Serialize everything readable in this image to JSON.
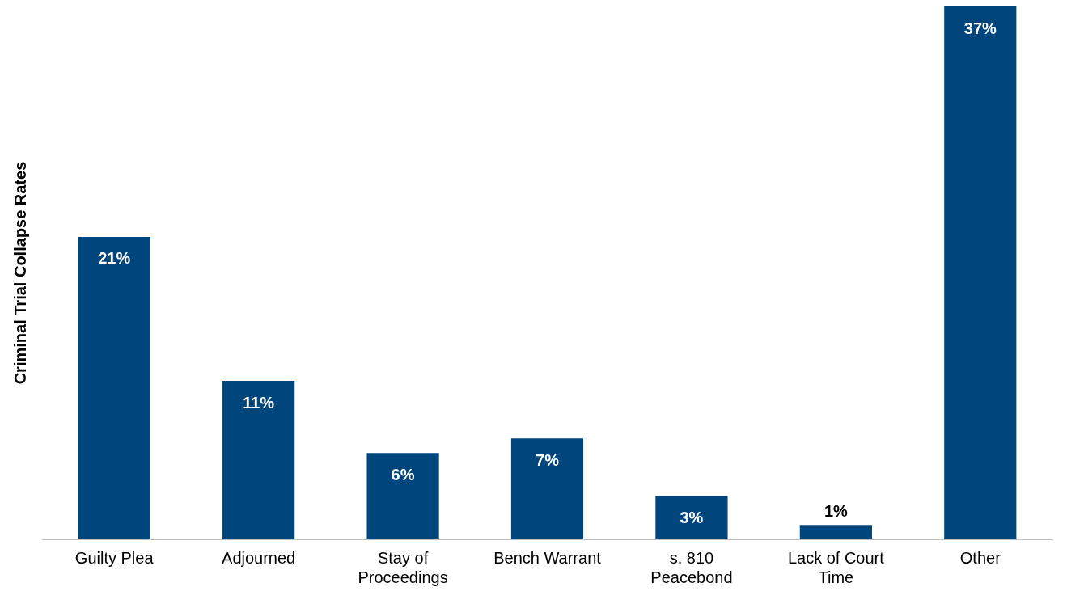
{
  "chart_data": {
    "type": "bar",
    "ylabel": "Criminal Trial Collapse Rates",
    "categories": [
      "Guilty Plea",
      "Adjourned",
      "Stay of Proceedings",
      "Bench Warrant",
      "s. 810 Peacebond",
      "Lack of Court Time",
      "Other"
    ],
    "values": [
      21,
      11,
      6,
      7,
      3,
      1,
      37
    ],
    "value_labels": [
      "21%",
      "11%",
      "6%",
      "7%",
      "3%",
      "1%",
      "37%"
    ],
    "color": "#00457c",
    "grid": false,
    "legend": false
  }
}
